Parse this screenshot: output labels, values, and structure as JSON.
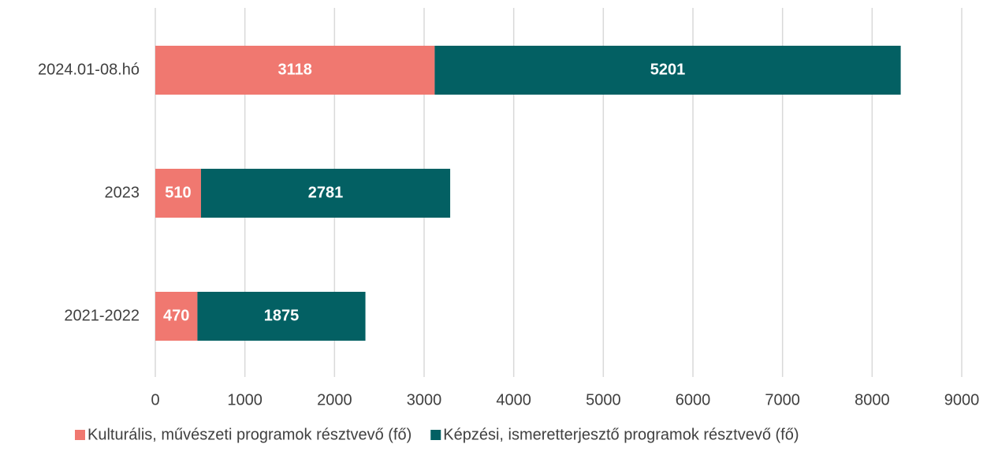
{
  "chart_data": {
    "type": "stacked-horizontal-bar",
    "categories": [
      "2024.01-08.hó",
      "2023",
      "2021-2022"
    ],
    "series": [
      {
        "name": "Kulturális, művészeti programok résztvevő (fő)",
        "color": "#f07870",
        "values": [
          3118,
          510,
          470
        ]
      },
      {
        "name": "Képzési, ismeretterjesztő programok résztvevő (fő)",
        "color": "#036063",
        "values": [
          5201,
          2781,
          1875
        ]
      }
    ],
    "xlim": [
      0,
      9000
    ],
    "xticks": [
      0,
      1000,
      2000,
      3000,
      4000,
      5000,
      6000,
      7000,
      8000,
      9000
    ],
    "grid": true,
    "legend": "bottom"
  }
}
